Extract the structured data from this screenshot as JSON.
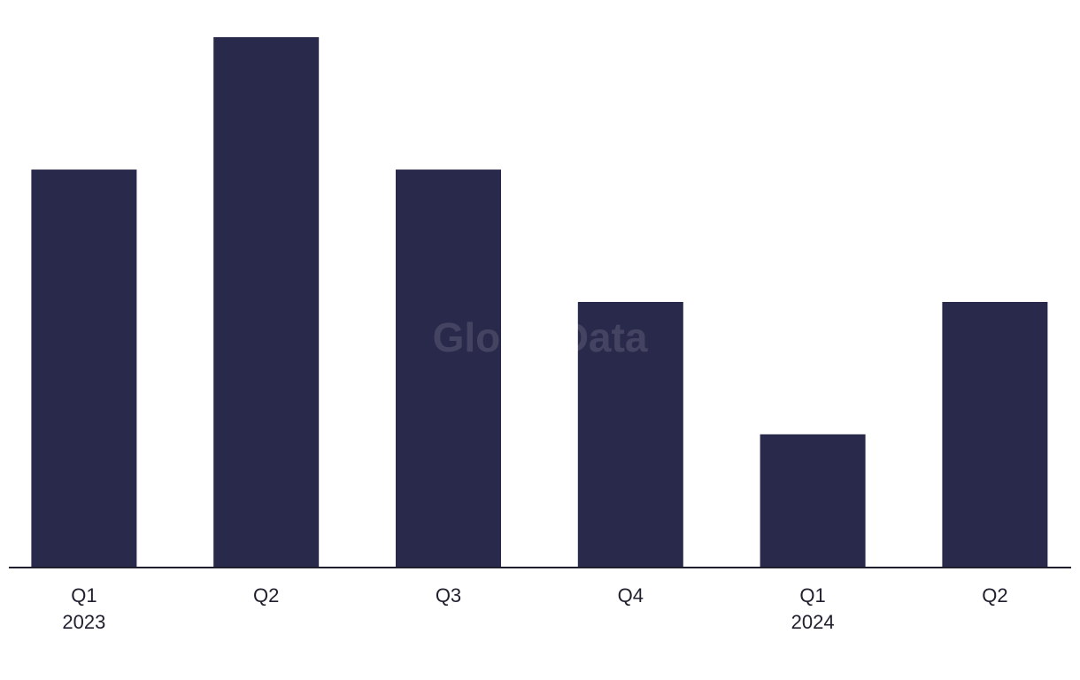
{
  "chart_data": {
    "type": "bar",
    "watermark": "GlobalData",
    "categories": [
      "Q1",
      "Q2",
      "Q3",
      "Q4",
      "Q1",
      "Q2"
    ],
    "category_years": [
      "2023",
      null,
      null,
      null,
      "2024",
      null
    ],
    "values": [
      3,
      4,
      3,
      2,
      1,
      2
    ],
    "color": "#29294b",
    "ylim": [
      0,
      4
    ]
  }
}
